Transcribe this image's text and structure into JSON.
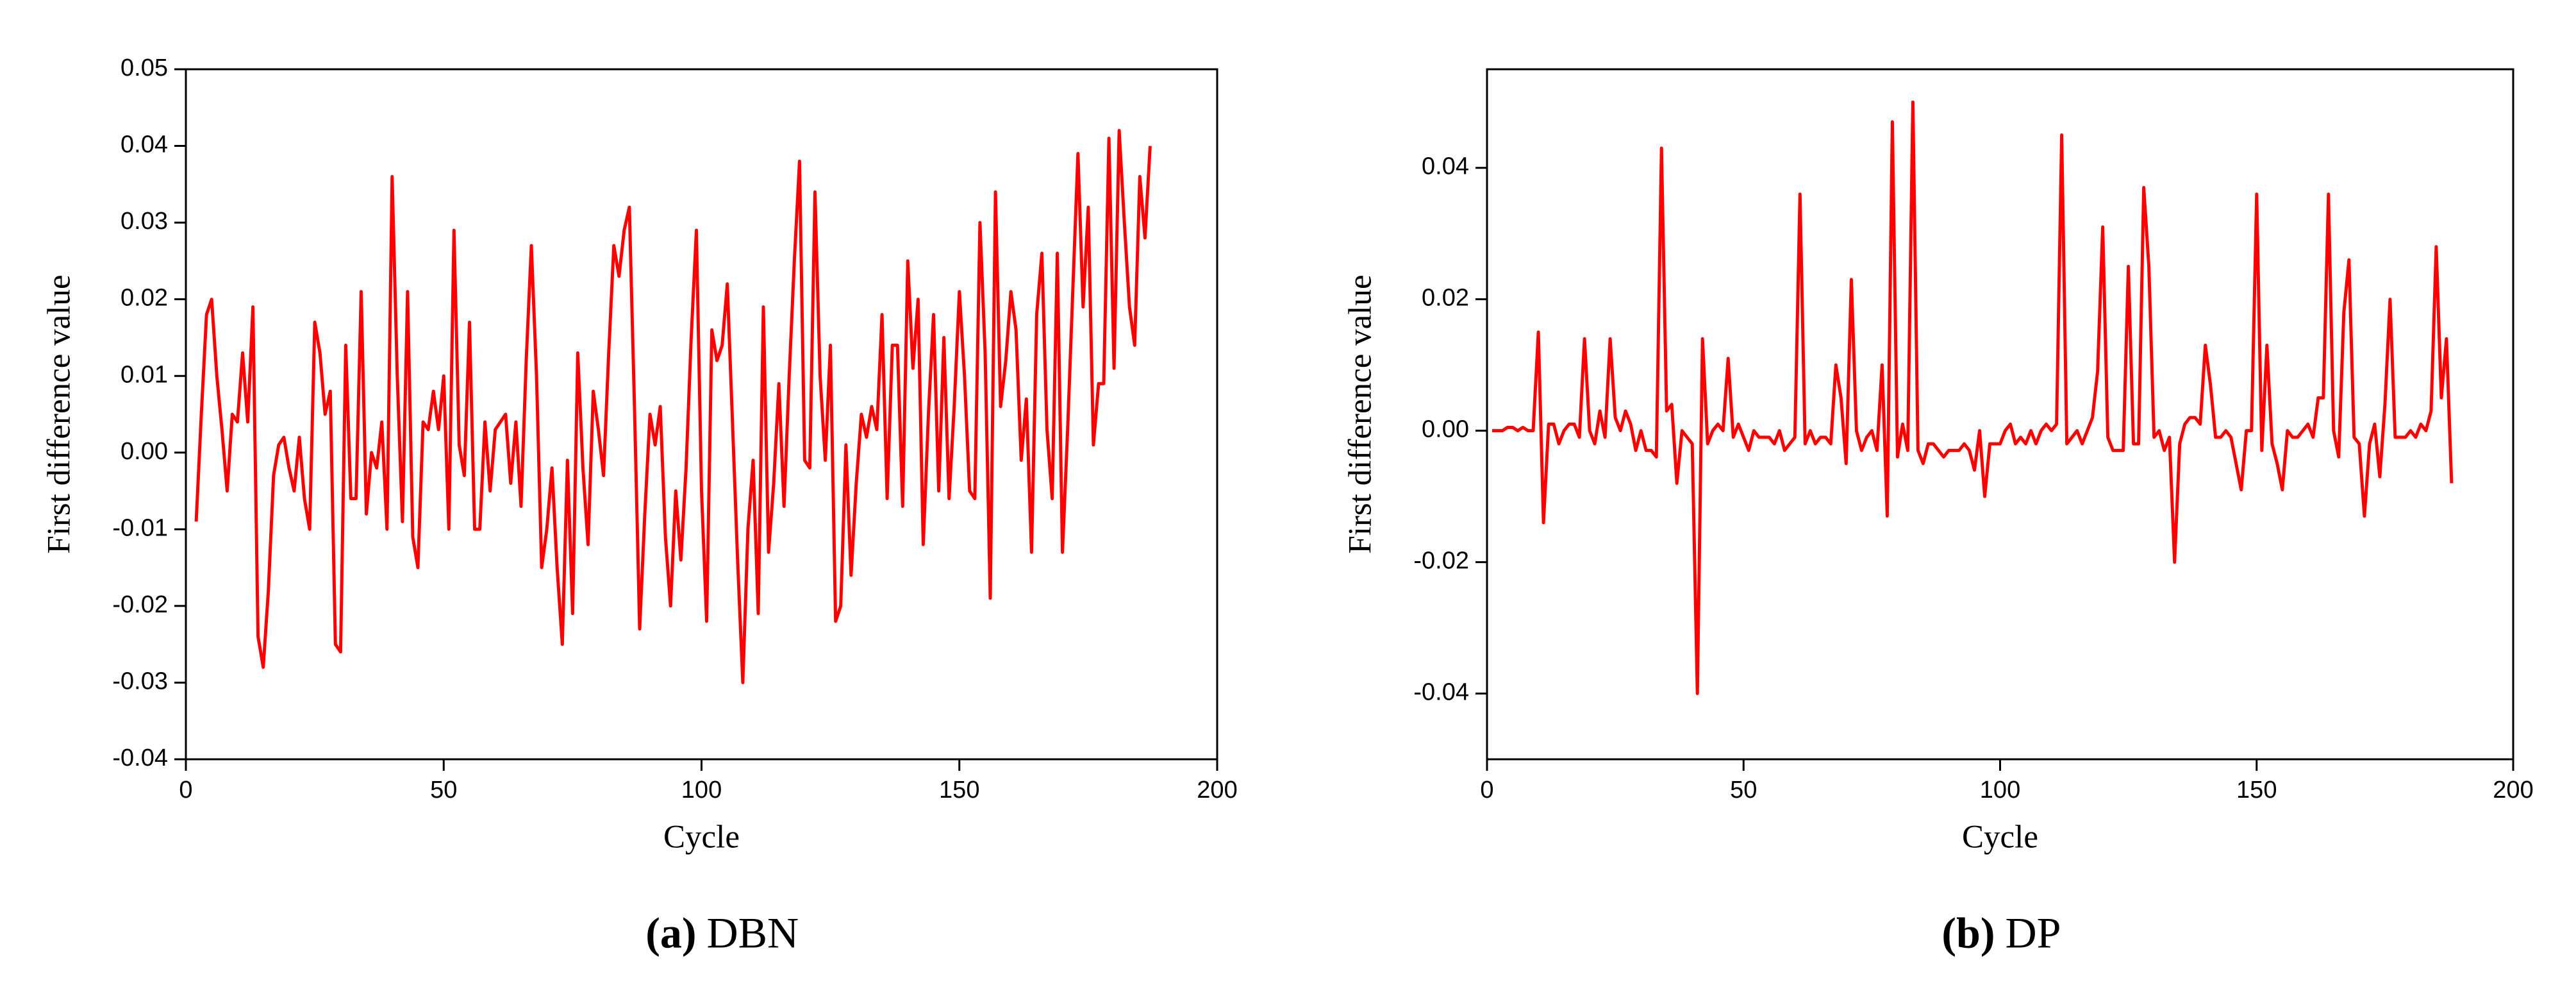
{
  "chart_data": [
    {
      "type": "line",
      "x_label": "Cycle",
      "y_label": "First difference value",
      "caption_label": "(a)",
      "caption_text": "DBN",
      "color": "#ff0000",
      "xlim": [
        0,
        200
      ],
      "xticks": [
        0,
        50,
        100,
        150,
        200
      ],
      "ylim": [
        -0.04,
        0.05
      ],
      "yticks": [
        -0.04,
        -0.03,
        -0.02,
        -0.01,
        {
          "value": 0,
          "label": "0.00"
        },
        0.01,
        0.02,
        0.03,
        0.04,
        0.05
      ],
      "x": [
        2,
        3,
        4,
        5,
        6,
        7,
        8,
        9,
        10,
        11,
        12,
        13,
        14,
        15,
        16,
        17,
        18,
        19,
        20,
        21,
        22,
        23,
        24,
        25,
        26,
        27,
        28,
        29,
        30,
        31,
        32,
        33,
        34,
        35,
        36,
        37,
        38,
        39,
        40,
        41,
        42,
        43,
        44,
        45,
        46,
        47,
        48,
        49,
        50,
        51,
        52,
        53,
        54,
        55,
        56,
        57,
        58,
        59,
        60,
        61,
        62,
        63,
        64,
        65,
        66,
        67,
        68,
        69,
        70,
        71,
        72,
        73,
        74,
        75,
        76,
        77,
        78,
        79,
        80,
        81,
        82,
        83,
        84,
        85,
        86,
        87,
        88,
        89,
        90,
        91,
        92,
        93,
        94,
        95,
        96,
        97,
        98,
        99,
        100,
        101,
        102,
        103,
        104,
        105,
        106,
        107,
        108,
        109,
        110,
        111,
        112,
        113,
        114,
        115,
        116,
        117,
        118,
        119,
        120,
        121,
        122,
        123,
        124,
        125,
        126,
        127,
        128,
        129,
        130,
        131,
        132,
        133,
        134,
        135,
        136,
        137,
        138,
        139,
        140,
        141,
        142,
        143,
        144,
        145,
        146,
        147,
        148,
        149,
        150,
        151,
        152,
        153,
        154,
        155,
        156,
        157,
        158,
        159,
        160,
        161,
        162,
        163,
        164,
        165,
        166,
        167,
        168,
        169,
        170,
        171,
        172,
        173,
        174,
        175,
        176,
        177,
        178,
        179,
        180,
        181,
        182,
        183,
        184,
        185,
        186,
        187
      ],
      "values": [
        -0.009,
        0.005,
        0.018,
        0.02,
        0.01,
        0.003,
        -0.005,
        0.005,
        0.004,
        0.013,
        0.004,
        0.019,
        -0.024,
        -0.028,
        -0.018,
        -0.003,
        0.001,
        0.002,
        -0.002,
        -0.005,
        0.002,
        -0.006,
        -0.01,
        0.017,
        0.013,
        0.005,
        0.008,
        -0.025,
        -0.026,
        0.014,
        -0.006,
        -0.006,
        0.021,
        -0.008,
        0.0,
        -0.002,
        0.004,
        -0.01,
        0.036,
        0.01,
        -0.009,
        0.021,
        -0.011,
        -0.015,
        0.004,
        0.003,
        0.008,
        0.003,
        0.01,
        -0.01,
        0.029,
        0.001,
        -0.003,
        0.017,
        -0.01,
        -0.01,
        0.004,
        -0.005,
        0.003,
        0.004,
        0.005,
        -0.004,
        0.004,
        -0.007,
        0.012,
        0.027,
        0.01,
        -0.015,
        -0.01,
        -0.002,
        -0.015,
        -0.025,
        -0.001,
        -0.021,
        0.013,
        -0.002,
        -0.012,
        0.008,
        0.003,
        -0.003,
        0.013,
        0.027,
        0.023,
        0.029,
        0.032,
        0.006,
        -0.023,
        -0.008,
        0.005,
        0.001,
        0.006,
        -0.011,
        -0.02,
        -0.005,
        -0.014,
        -0.002,
        0.015,
        0.029,
        -0.005,
        -0.022,
        0.016,
        0.012,
        0.014,
        0.022,
        0.004,
        -0.014,
        -0.03,
        -0.01,
        -0.001,
        -0.021,
        0.019,
        -0.013,
        -0.004,
        0.009,
        -0.007,
        0.01,
        0.025,
        0.038,
        -0.001,
        -0.002,
        0.034,
        0.01,
        -0.001,
        0.014,
        -0.022,
        -0.02,
        0.001,
        -0.016,
        -0.004,
        0.005,
        0.002,
        0.006,
        0.003,
        0.018,
        -0.006,
        0.014,
        0.014,
        -0.007,
        0.025,
        0.011,
        0.02,
        -0.012,
        0.005,
        0.018,
        -0.005,
        0.015,
        -0.006,
        0.006,
        0.021,
        0.01,
        -0.005,
        -0.006,
        0.03,
        0.013,
        -0.019,
        0.034,
        0.006,
        0.012,
        0.021,
        0.016,
        -0.001,
        0.007,
        -0.013,
        0.018,
        0.026,
        0.003,
        -0.006,
        0.026,
        -0.013,
        0.003,
        0.021,
        0.039,
        0.019,
        0.032,
        0.001,
        0.009,
        0.009,
        0.041,
        0.011,
        0.042,
        0.03,
        0.019,
        0.014,
        0.036,
        0.028,
        0.04
      ]
    },
    {
      "type": "line",
      "x_label": "Cycle",
      "y_label": "First difference value",
      "caption_label": "(b)",
      "caption_text": "DP",
      "color": "#ff0000",
      "xlim": [
        0,
        200
      ],
      "xticks": [
        0,
        50,
        100,
        150,
        200
      ],
      "ylim": [
        -0.05,
        0.055
      ],
      "yticks": [
        -0.04,
        -0.02,
        {
          "value": 0,
          "label": "0.00"
        },
        0.02,
        0.04
      ],
      "x": [
        1,
        2,
        3,
        4,
        5,
        6,
        7,
        8,
        9,
        10,
        11,
        12,
        13,
        14,
        15,
        16,
        17,
        18,
        19,
        20,
        21,
        22,
        23,
        24,
        25,
        26,
        27,
        28,
        29,
        30,
        31,
        32,
        33,
        34,
        35,
        36,
        37,
        38,
        39,
        40,
        41,
        42,
        43,
        44,
        45,
        46,
        47,
        48,
        49,
        50,
        51,
        52,
        53,
        54,
        55,
        56,
        57,
        58,
        59,
        60,
        61,
        62,
        63,
        64,
        65,
        66,
        67,
        68,
        69,
        70,
        71,
        72,
        73,
        74,
        75,
        76,
        77,
        78,
        79,
        80,
        81,
        82,
        83,
        84,
        85,
        86,
        87,
        88,
        89,
        90,
        91,
        92,
        93,
        94,
        95,
        96,
        97,
        98,
        99,
        100,
        101,
        102,
        103,
        104,
        105,
        106,
        107,
        108,
        109,
        110,
        111,
        112,
        113,
        114,
        115,
        116,
        117,
        118,
        119,
        120,
        121,
        122,
        123,
        124,
        125,
        126,
        127,
        128,
        129,
        130,
        131,
        132,
        133,
        134,
        135,
        136,
        137,
        138,
        139,
        140,
        141,
        142,
        143,
        144,
        145,
        146,
        147,
        148,
        149,
        150,
        151,
        152,
        153,
        154,
        155,
        156,
        157,
        158,
        159,
        160,
        161,
        162,
        163,
        164,
        165,
        166,
        167,
        168,
        169,
        170,
        171,
        172,
        173,
        174,
        175,
        176,
        177,
        178,
        179,
        180,
        181,
        182,
        183,
        184,
        185,
        186,
        187,
        188
      ],
      "values": [
        0.0,
        0.0,
        0.0,
        0.0005,
        0.0005,
        0.0,
        0.0005,
        0.0,
        0.0,
        0.015,
        -0.014,
        0.001,
        0.001,
        -0.002,
        0.0,
        0.001,
        0.001,
        -0.001,
        0.014,
        0.0,
        -0.002,
        0.003,
        -0.001,
        0.014,
        0.002,
        0.0,
        0.003,
        0.001,
        -0.003,
        0.0,
        -0.003,
        -0.003,
        -0.004,
        0.043,
        0.003,
        0.004,
        -0.008,
        0.0,
        -0.001,
        -0.002,
        -0.04,
        0.014,
        -0.002,
        0.0,
        0.001,
        0.0,
        0.011,
        -0.001,
        0.001,
        -0.001,
        -0.003,
        0.0,
        -0.001,
        -0.001,
        -0.001,
        -0.002,
        0.0,
        -0.003,
        -0.002,
        -0.001,
        0.036,
        -0.002,
        0.0,
        -0.002,
        -0.001,
        -0.001,
        -0.002,
        0.01,
        0.005,
        -0.005,
        0.023,
        0.0,
        -0.003,
        -0.001,
        0.0,
        -0.003,
        0.01,
        -0.013,
        0.047,
        -0.004,
        0.001,
        -0.003,
        0.05,
        -0.003,
        -0.005,
        -0.002,
        -0.002,
        -0.003,
        -0.004,
        -0.003,
        -0.003,
        -0.003,
        -0.002,
        -0.003,
        -0.006,
        0.0,
        -0.01,
        -0.002,
        -0.002,
        -0.002,
        0.0,
        0.001,
        -0.002,
        -0.001,
        -0.002,
        0.0,
        -0.002,
        0.0,
        0.001,
        0.0,
        0.001,
        0.045,
        -0.002,
        -0.001,
        0.0,
        -0.002,
        0.0,
        0.002,
        0.009,
        0.031,
        -0.001,
        -0.003,
        -0.003,
        -0.003,
        0.025,
        -0.002,
        -0.002,
        0.037,
        0.025,
        -0.001,
        0.0,
        -0.003,
        -0.001,
        -0.02,
        -0.002,
        0.001,
        0.002,
        0.002,
        0.001,
        0.013,
        0.007,
        -0.001,
        -0.001,
        0.0,
        -0.001,
        -0.005,
        -0.009,
        0.0,
        0.0,
        0.036,
        -0.003,
        0.013,
        -0.002,
        -0.005,
        -0.009,
        0.0,
        -0.001,
        -0.001,
        0.0,
        0.001,
        -0.001,
        0.005,
        0.005,
        0.036,
        0.0,
        -0.004,
        0.018,
        0.026,
        -0.001,
        -0.002,
        -0.013,
        -0.002,
        0.001,
        -0.007,
        0.004,
        0.02,
        -0.001,
        -0.001,
        -0.001,
        0.0,
        -0.001,
        0.001,
        0.0,
        0.003,
        0.028,
        0.005,
        0.014,
        -0.008
      ]
    }
  ]
}
